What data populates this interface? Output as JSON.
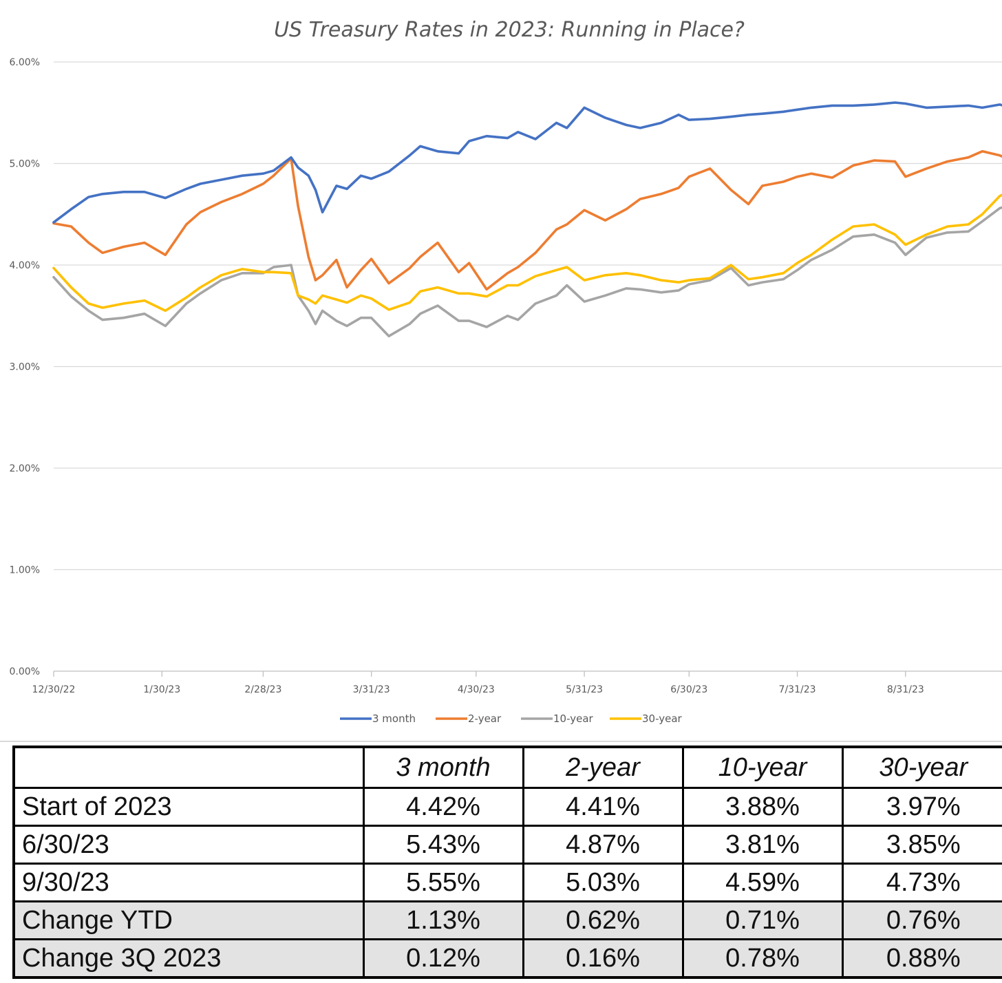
{
  "chart_data": {
    "type": "line",
    "title": "US Treasury Rates in 2023: Running in Place?",
    "y_ticks": [
      "0.00%",
      "1.00%",
      "2.00%",
      "3.00%",
      "4.00%",
      "5.00%",
      "6.00%"
    ],
    "ylim": [
      0,
      6
    ],
    "x_ticks": [
      "12/30/22",
      "1/30/23",
      "2/28/23",
      "3/31/23",
      "4/30/23",
      "5/31/23",
      "6/30/23",
      "7/31/23",
      "8/31/23"
    ],
    "x_range": [
      "12/30/22",
      "9/30/23"
    ],
    "grid": "horizontal",
    "legend_position": "bottom",
    "x": [
      "12/30/22",
      "1/4/23",
      "1/9/23",
      "1/13/23",
      "1/19/23",
      "1/25/23",
      "1/31/23",
      "2/6/23",
      "2/10/23",
      "2/16/23",
      "2/22/23",
      "2/28/23",
      "3/3/23",
      "3/8/23",
      "3/10/23",
      "3/13/23",
      "3/15/23",
      "3/17/23",
      "3/21/23",
      "3/24/23",
      "3/28/23",
      "3/31/23",
      "4/5/23",
      "4/11/23",
      "4/14/23",
      "4/19/23",
      "4/25/23",
      "4/28/23",
      "5/3/23",
      "5/9/23",
      "5/12/23",
      "5/17/23",
      "5/23/23",
      "5/26/23",
      "5/31/23",
      "6/6/23",
      "6/12/23",
      "6/16/23",
      "6/22/23",
      "6/27/23",
      "6/30/23",
      "7/6/23",
      "7/12/23",
      "7/17/23",
      "7/21/23",
      "7/27/23",
      "7/31/23",
      "8/4/23",
      "8/10/23",
      "8/16/23",
      "8/22/23",
      "8/28/23",
      "8/31/23",
      "9/6/23",
      "9/12/23",
      "9/18/23",
      "9/22/23",
      "9/27/23",
      "9/30/23"
    ],
    "series": [
      {
        "name": "3 month",
        "color": "#4472c4",
        "values": [
          4.42,
          4.55,
          4.67,
          4.7,
          4.72,
          4.72,
          4.66,
          4.75,
          4.8,
          4.84,
          4.88,
          4.9,
          4.93,
          5.06,
          4.96,
          4.88,
          4.74,
          4.52,
          4.78,
          4.75,
          4.88,
          4.85,
          4.92,
          5.08,
          5.17,
          5.12,
          5.1,
          5.22,
          5.27,
          5.25,
          5.31,
          5.24,
          5.4,
          5.35,
          5.55,
          5.45,
          5.38,
          5.35,
          5.4,
          5.48,
          5.43,
          5.44,
          5.46,
          5.48,
          5.49,
          5.51,
          5.53,
          5.55,
          5.57,
          5.57,
          5.58,
          5.6,
          5.59,
          5.55,
          5.56,
          5.57,
          5.55,
          5.58,
          5.55
        ]
      },
      {
        "name": "2-year",
        "color": "#ed7d31",
        "values": [
          4.41,
          4.38,
          4.22,
          4.12,
          4.18,
          4.22,
          4.1,
          4.4,
          4.52,
          4.62,
          4.7,
          4.8,
          4.88,
          5.05,
          4.58,
          4.08,
          3.85,
          3.9,
          4.05,
          3.78,
          3.95,
          4.06,
          3.82,
          3.97,
          4.08,
          4.22,
          3.93,
          4.02,
          3.76,
          3.92,
          3.98,
          4.12,
          4.35,
          4.4,
          4.54,
          4.44,
          4.55,
          4.65,
          4.7,
          4.76,
          4.87,
          4.95,
          4.74,
          4.6,
          4.78,
          4.82,
          4.87,
          4.9,
          4.86,
          4.98,
          5.03,
          5.02,
          4.87,
          4.95,
          5.02,
          5.06,
          5.12,
          5.08,
          5.03
        ]
      },
      {
        "name": "10-year",
        "color": "#a5a5a5",
        "values": [
          3.88,
          3.69,
          3.55,
          3.46,
          3.48,
          3.52,
          3.4,
          3.62,
          3.72,
          3.85,
          3.92,
          3.92,
          3.98,
          4.0,
          3.7,
          3.55,
          3.42,
          3.55,
          3.45,
          3.4,
          3.48,
          3.48,
          3.3,
          3.42,
          3.52,
          3.6,
          3.45,
          3.45,
          3.39,
          3.5,
          3.46,
          3.62,
          3.7,
          3.8,
          3.64,
          3.7,
          3.77,
          3.76,
          3.73,
          3.75,
          3.81,
          3.85,
          3.97,
          3.8,
          3.83,
          3.86,
          3.95,
          4.05,
          4.15,
          4.28,
          4.3,
          4.22,
          4.1,
          4.27,
          4.32,
          4.33,
          4.43,
          4.56,
          4.59
        ]
      },
      {
        "name": "30-year",
        "color": "#ffc000",
        "values": [
          3.97,
          3.78,
          3.62,
          3.58,
          3.62,
          3.65,
          3.55,
          3.68,
          3.78,
          3.9,
          3.96,
          3.93,
          3.93,
          3.92,
          3.7,
          3.66,
          3.62,
          3.7,
          3.66,
          3.63,
          3.7,
          3.67,
          3.56,
          3.63,
          3.74,
          3.78,
          3.72,
          3.72,
          3.69,
          3.8,
          3.8,
          3.89,
          3.95,
          3.98,
          3.85,
          3.9,
          3.92,
          3.9,
          3.85,
          3.83,
          3.85,
          3.87,
          4.0,
          3.86,
          3.88,
          3.92,
          4.02,
          4.1,
          4.25,
          4.38,
          4.4,
          4.3,
          4.2,
          4.3,
          4.38,
          4.4,
          4.5,
          4.68,
          4.73
        ]
      }
    ]
  },
  "summary_table": {
    "header": [
      "",
      "3 month",
      "2-year",
      "10-year",
      "30-year"
    ],
    "rows": [
      {
        "label": "Start of 2023",
        "values": [
          "4.42%",
          "4.41%",
          "3.88%",
          "3.97%"
        ]
      },
      {
        "label": "6/30/23",
        "values": [
          "5.43%",
          "4.87%",
          "3.81%",
          "3.85%"
        ]
      },
      {
        "label": "9/30/23",
        "values": [
          "5.55%",
          "5.03%",
          "4.59%",
          "4.73%"
        ]
      },
      {
        "label": "Change YTD",
        "values": [
          "1.13%",
          "0.62%",
          "0.71%",
          "0.76%"
        ]
      },
      {
        "label": "Change 3Q 2023",
        "values": [
          "0.12%",
          "0.16%",
          "0.78%",
          "0.88%"
        ]
      }
    ]
  }
}
